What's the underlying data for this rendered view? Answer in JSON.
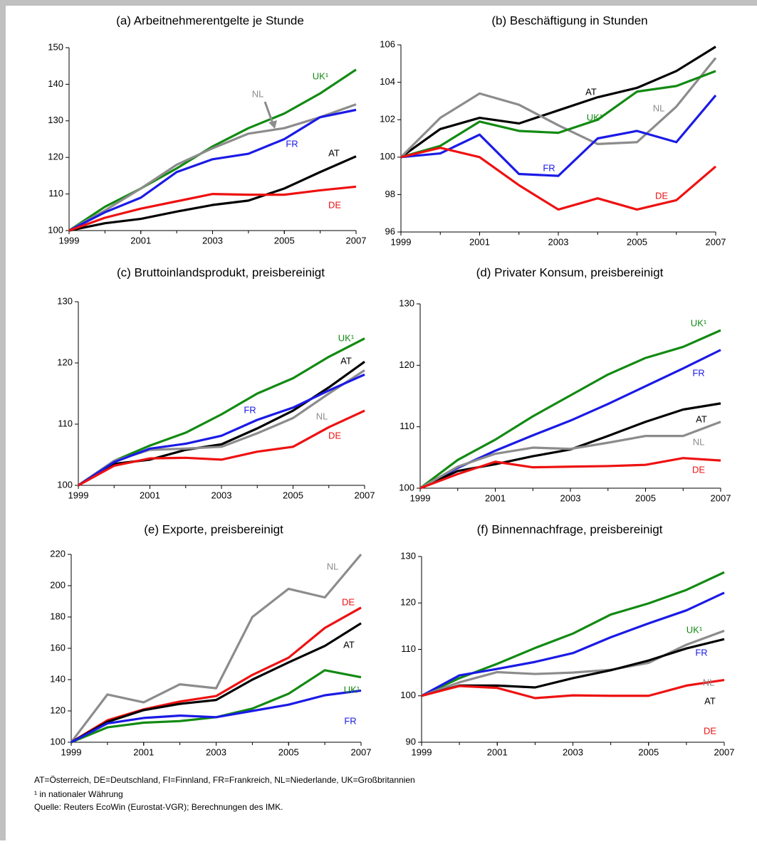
{
  "chart_data": [
    {
      "type": "line",
      "title": "(a) Arbeitnehmerentgelte je Stunde",
      "x": [
        1999,
        2000,
        2001,
        2002,
        2003,
        2004,
        2005,
        2006,
        2007
      ],
      "xlim": [
        1999,
        2007
      ],
      "xticks": [
        1999,
        2001,
        2003,
        2005,
        2007
      ],
      "ylim": [
        100,
        150
      ],
      "yticks": [
        100,
        110,
        120,
        130,
        140,
        150
      ],
      "series": [
        {
          "name": "UK¹",
          "color": "#128a12",
          "values": [
            100,
            106.5,
            111.5,
            117,
            123,
            128,
            132,
            137.5,
            144
          ]
        },
        {
          "name": "NL",
          "color": "#8c8c8c",
          "values": [
            100,
            105.5,
            111.5,
            118,
            122.5,
            126.5,
            128,
            131,
            134.5
          ]
        },
        {
          "name": "FR",
          "color": "#1a1ae6",
          "values": [
            100,
            105,
            109,
            116,
            119.5,
            121,
            125,
            131,
            133
          ]
        },
        {
          "name": "AT",
          "color": "#000000",
          "values": [
            100,
            102,
            103.2,
            105.2,
            107,
            108.2,
            111.5,
            116,
            120.3
          ]
        },
        {
          "name": "DE",
          "color": "#ee1111",
          "values": [
            100,
            103.5,
            106,
            108,
            110,
            109.8,
            109.8,
            111,
            112
          ]
        }
      ]
    },
    {
      "type": "line",
      "title": "(b) Beschäftigung in Stunden",
      "x": [
        1999,
        2000,
        2001,
        2002,
        2003,
        2004,
        2005,
        2006,
        2007
      ],
      "xlim": [
        1999,
        2007
      ],
      "xticks": [
        1999,
        2001,
        2003,
        2005,
        2007
      ],
      "ylim": [
        96,
        106
      ],
      "yticks": [
        96,
        98,
        100,
        102,
        104,
        106
      ],
      "series": [
        {
          "name": "AT",
          "color": "#000000",
          "values": [
            100,
            101.5,
            102.1,
            101.8,
            102.5,
            103.2,
            103.7,
            104.6,
            105.9
          ]
        },
        {
          "name": "NL",
          "color": "#8c8c8c",
          "values": [
            100,
            102.1,
            103.4,
            102.8,
            101.7,
            100.7,
            100.8,
            102.7,
            105.3
          ]
        },
        {
          "name": "UK¹",
          "color": "#128a12",
          "values": [
            100,
            100.6,
            101.9,
            101.4,
            101.3,
            102,
            103.5,
            103.8,
            104.6
          ]
        },
        {
          "name": "FR",
          "color": "#1a1ae6",
          "values": [
            100,
            100.2,
            101.2,
            99.1,
            99,
            101,
            101.4,
            100.8,
            103.3
          ]
        },
        {
          "name": "DE",
          "color": "#ee1111",
          "values": [
            100,
            100.5,
            100,
            98.5,
            97.2,
            97.8,
            97.2,
            97.7,
            99.5
          ]
        }
      ]
    },
    {
      "type": "line",
      "title": "(c) Bruttoinlandsprodukt, preisbereinigt",
      "x": [
        1999,
        2000,
        2001,
        2002,
        2003,
        2004,
        2005,
        2006,
        2007
      ],
      "xlim": [
        1999,
        2007
      ],
      "xticks": [
        1999,
        2001,
        2003,
        2005,
        2007
      ],
      "ylim": [
        100,
        130
      ],
      "yticks": [
        100,
        110,
        120,
        130
      ],
      "series": [
        {
          "name": "UK¹",
          "color": "#128a12",
          "values": [
            100,
            104,
            106.5,
            108.6,
            111.6,
            115,
            117.5,
            121,
            124
          ]
        },
        {
          "name": "AT",
          "color": "#000000",
          "values": [
            100,
            103.5,
            104.2,
            105.8,
            106.7,
            109.3,
            112.2,
            116,
            120.2
          ]
        },
        {
          "name": "NL",
          "color": "#8c8c8c",
          "values": [
            100,
            104,
            105.8,
            106,
            106.3,
            108.5,
            111,
            115,
            118.8
          ]
        },
        {
          "name": "FR",
          "color": "#1a1ae6",
          "values": [
            100,
            103.8,
            106,
            106.8,
            108.1,
            110.7,
            112.7,
            115.5,
            118.1
          ]
        },
        {
          "name": "DE",
          "color": "#ee1111",
          "values": [
            100,
            103.2,
            104.4,
            104.5,
            104.2,
            105.5,
            106.3,
            109.5,
            112.2
          ]
        }
      ]
    },
    {
      "type": "line",
      "title": "(d) Privater Konsum, preisbereinigt",
      "x": [
        1999,
        2000,
        2001,
        2002,
        2003,
        2004,
        2005,
        2006,
        2007
      ],
      "xlim": [
        1999,
        2007
      ],
      "xticks": [
        1999,
        2001,
        2003,
        2005,
        2007
      ],
      "ylim": [
        100,
        130
      ],
      "yticks": [
        100,
        110,
        120,
        130
      ],
      "series": [
        {
          "name": "UK¹",
          "color": "#128a12",
          "values": [
            100,
            104.6,
            107.9,
            111.7,
            115.1,
            118.5,
            121.2,
            123,
            125.7
          ]
        },
        {
          "name": "FR",
          "color": "#1a1ae6",
          "values": [
            100,
            103.3,
            106.1,
            108.6,
            111,
            113.7,
            116.6,
            119.5,
            122.5
          ]
        },
        {
          "name": "AT",
          "color": "#000000",
          "values": [
            100,
            102.8,
            103.9,
            105.2,
            106.3,
            108.5,
            110.8,
            112.8,
            113.8
          ]
        },
        {
          "name": "NL",
          "color": "#8c8c8c",
          "values": [
            100,
            103.5,
            105.6,
            106.6,
            106.4,
            107.4,
            108.5,
            108.5,
            110.8
          ]
        },
        {
          "name": "DE",
          "color": "#ee1111",
          "values": [
            100,
            102.3,
            104.3,
            103.4,
            103.5,
            103.6,
            103.8,
            104.9,
            104.5
          ]
        }
      ]
    },
    {
      "type": "line",
      "title": "(e) Exporte, preisbereinigt",
      "x": [
        1999,
        2000,
        2001,
        2002,
        2003,
        2004,
        2005,
        2006,
        2007
      ],
      "xlim": [
        1999,
        2007
      ],
      "xticks": [
        1999,
        2001,
        2003,
        2005,
        2007
      ],
      "ylim": [
        100,
        220
      ],
      "yticks": [
        100,
        120,
        140,
        160,
        180,
        200,
        220
      ],
      "series": [
        {
          "name": "NL",
          "color": "#8c8c8c",
          "values": [
            100,
            130.5,
            125.5,
            137,
            134.5,
            180,
            198,
            192.5,
            220
          ]
        },
        {
          "name": "DE",
          "color": "#ee1111",
          "values": [
            100,
            114,
            121,
            126,
            129.5,
            143,
            154,
            173,
            186
          ]
        },
        {
          "name": "AT",
          "color": "#000000",
          "values": [
            100,
            113,
            120.5,
            124.5,
            127,
            140,
            151,
            161.5,
            176
          ]
        },
        {
          "name": "UK¹",
          "color": "#128a12",
          "values": [
            100,
            109.5,
            112.5,
            113.5,
            116,
            121.5,
            131,
            146,
            141.5
          ]
        },
        {
          "name": "FR",
          "color": "#1a1ae6",
          "values": [
            100,
            112,
            115.5,
            117,
            116,
            120,
            124,
            130,
            133
          ]
        }
      ]
    },
    {
      "type": "line",
      "title": "(f) Binnennachfrage, preisbereinigt",
      "x": [
        1999,
        2000,
        2001,
        2002,
        2003,
        2004,
        2005,
        2006,
        2007
      ],
      "xlim": [
        1999,
        2007
      ],
      "xticks": [
        1999,
        2001,
        2003,
        2005,
        2007
      ],
      "ylim": [
        90,
        130
      ],
      "yticks": [
        90,
        100,
        110,
        120,
        130
      ],
      "series": [
        {
          "name": "UK¹",
          "color": "#128a12",
          "values": [
            100,
            103.8,
            106.9,
            110.3,
            113.4,
            117.5,
            119.9,
            122.8,
            126.6
          ]
        },
        {
          "name": "FR",
          "color": "#1a1ae6",
          "values": [
            100,
            104.4,
            105.8,
            107.3,
            109.2,
            112.6,
            115.6,
            118.4,
            122.2
          ]
        },
        {
          "name": "NL",
          "color": "#8c8c8c",
          "values": [
            100,
            102.9,
            105.1,
            104.7,
            105,
            105.6,
            107.1,
            111,
            114
          ]
        },
        {
          "name": "AT",
          "color": "#000000",
          "values": [
            100,
            102.2,
            102.2,
            101.8,
            103.8,
            105.5,
            107.6,
            110.2,
            112.2
          ]
        },
        {
          "name": "DE",
          "color": "#ee1111",
          "values": [
            100,
            102.1,
            101.7,
            99.5,
            100.1,
            100,
            100,
            102.2,
            103.4
          ]
        }
      ]
    }
  ],
  "notes": [
    "AT=Österreich, DE=Deutschland, FI=Finnland, FR=Frankreich, NL=Niederlande, UK=Großbritannien",
    "¹ in nationaler Währung",
    "Quelle: Reuters EcoWin (Eurostat-VGR); Berechnungen des IMK."
  ]
}
